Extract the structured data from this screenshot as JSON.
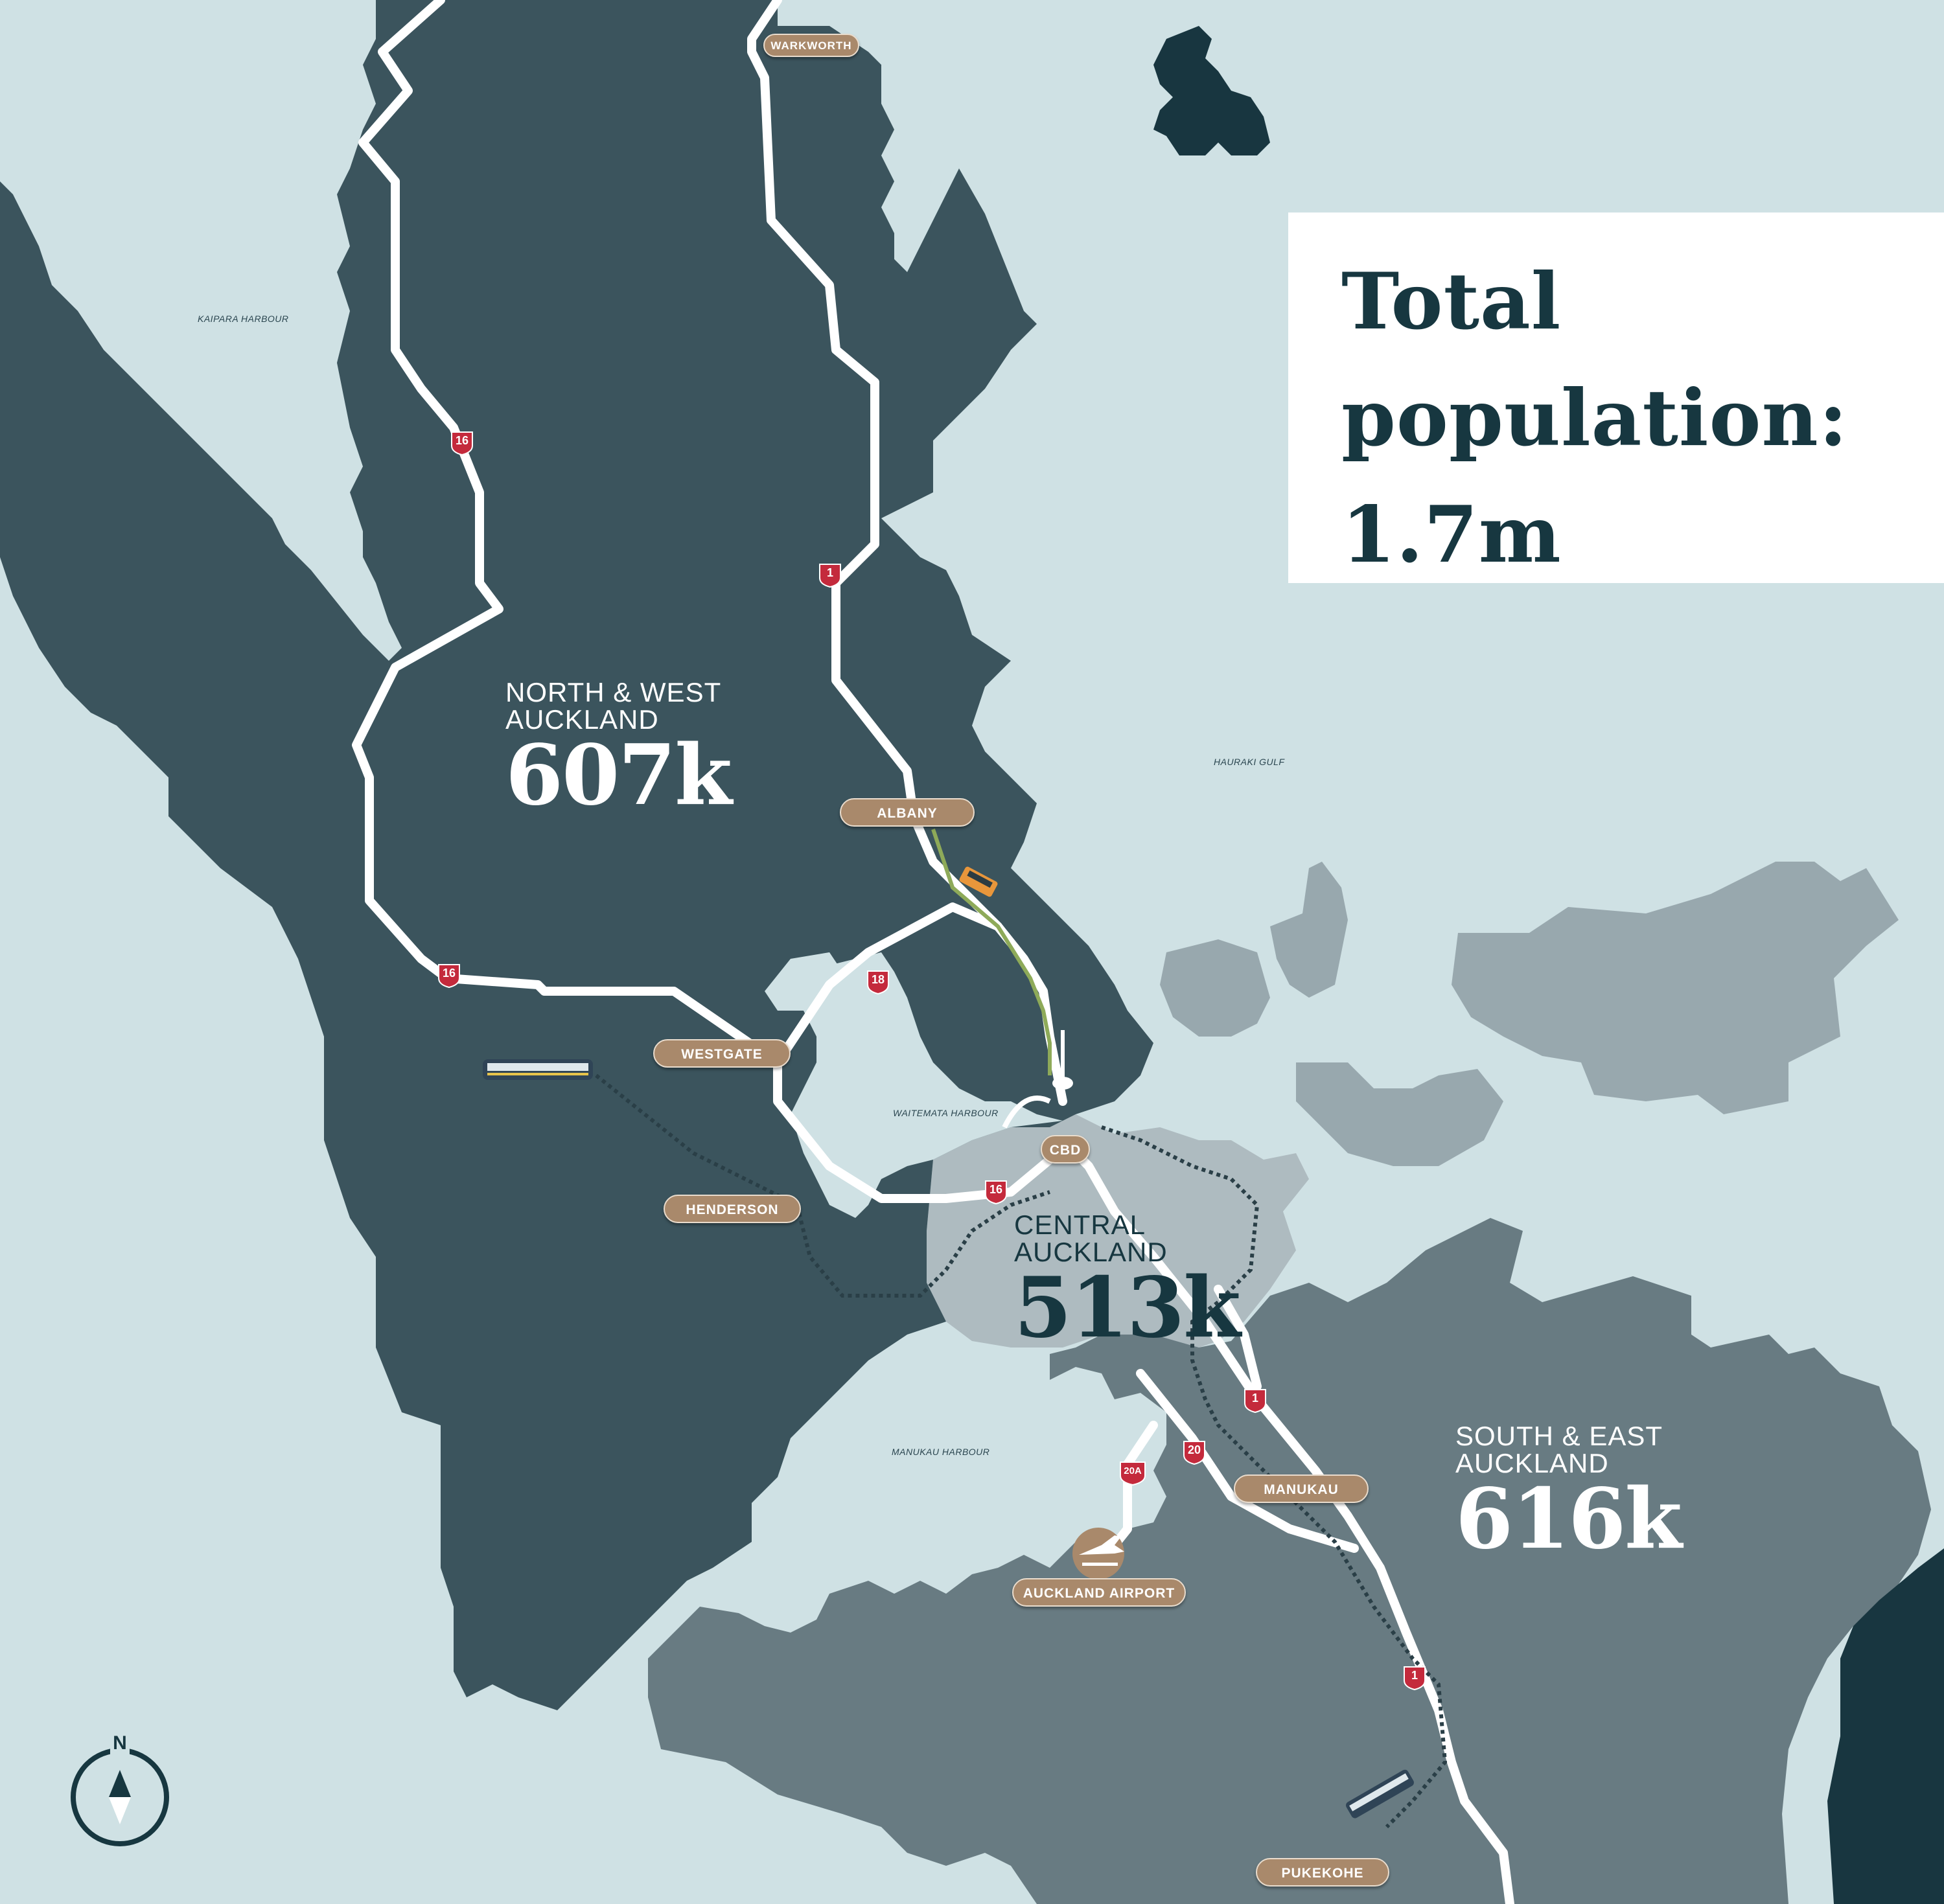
{
  "info_box": {
    "title_line1": "Total",
    "title_line2": "population:",
    "title_line3": "1.7m"
  },
  "regions": {
    "north_west": {
      "name_line1": "NORTH & WEST",
      "name_line2": "AUCKLAND",
      "population": "607k"
    },
    "central": {
      "name_line1": "CENTRAL",
      "name_line2": "AUCKLAND",
      "population": "513k"
    },
    "south_east": {
      "name_line1": "SOUTH & EAST",
      "name_line2": "AUCKLAND",
      "population": "616k"
    }
  },
  "water_labels": {
    "kaipara": "KAIPARA HARBOUR",
    "hauraki": "HAURAKI GULF",
    "waitemata": "WAITEMATA HARBOUR",
    "manukau": "MANUKAU HARBOUR"
  },
  "places": {
    "warkworth": "WARKWORTH",
    "albany": "ALBANY",
    "westgate": "WESTGATE",
    "henderson": "HENDERSON",
    "cbd": "CBD",
    "manukau": "MANUKAU",
    "airport": "AUCKLAND AIRPORT",
    "pukekohe": "PUKEKOHE"
  },
  "highways": {
    "sh16_north": "16",
    "sh1_north": "1",
    "sh16_west": "16",
    "sh18": "18",
    "sh16_central": "16",
    "sh1_south": "1",
    "sh20": "20",
    "sh20a": "20A",
    "sh1_far_south": "1"
  },
  "compass": {
    "label": "N"
  },
  "colors": {
    "sea": "#cfe1e4",
    "north_west_land": "#3b545d",
    "central_land": "#aebbc0",
    "south_east_land": "#687b82",
    "gulf_islands": "#98a8ae",
    "dark_land": "#183640",
    "road": "#ffffff",
    "pill": "#a9896b",
    "shield": "#c42a3c"
  },
  "icons": {
    "airport": "airplane-icon",
    "compass": "compass-icon",
    "bus": "bus-icon",
    "train": "train-icon",
    "sky_tower": "sky-tower-icon",
    "bridge": "harbour-bridge-icon"
  }
}
